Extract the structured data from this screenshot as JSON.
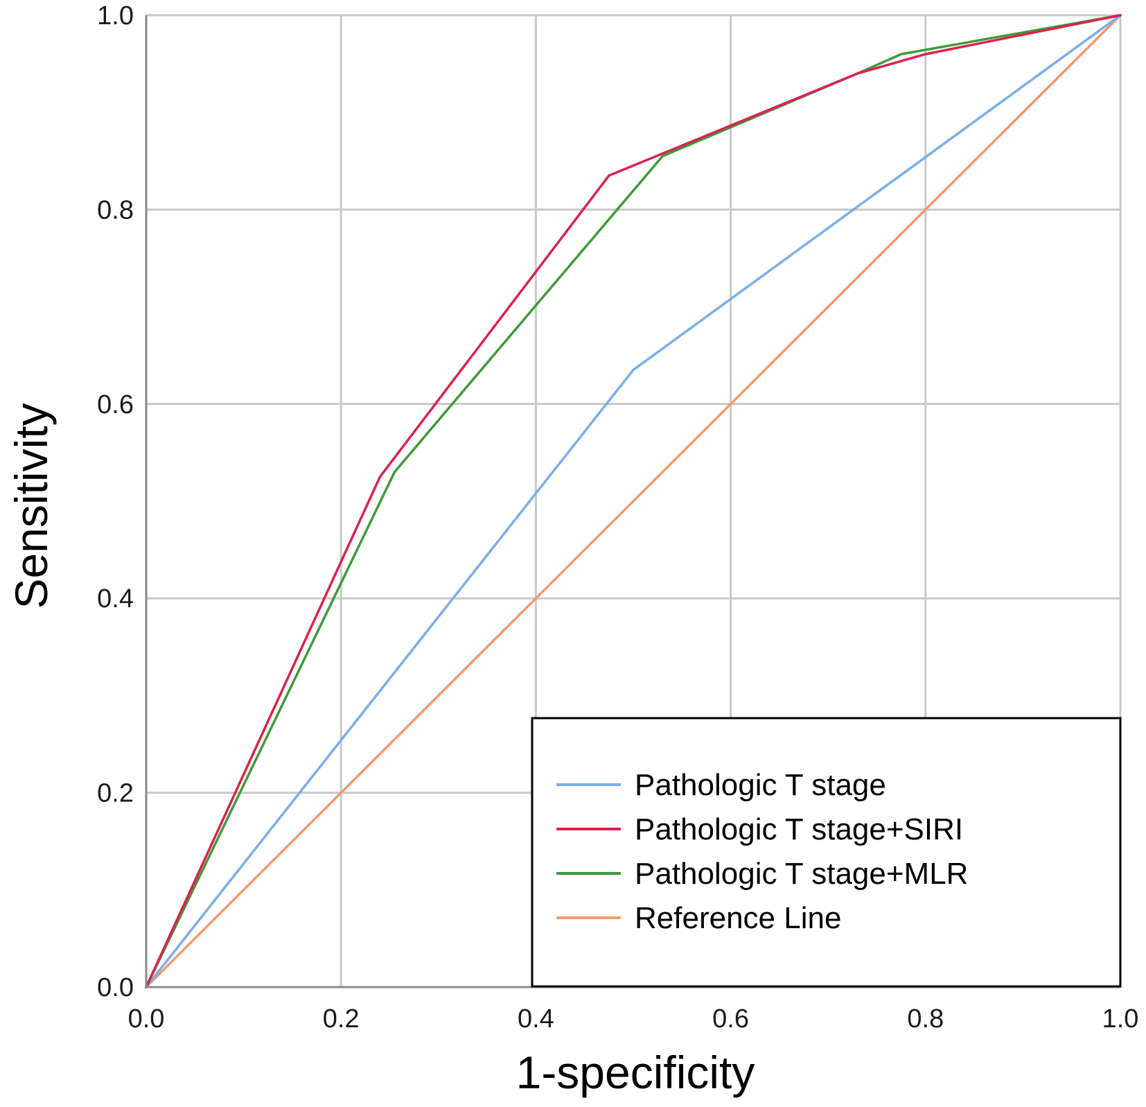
{
  "chart_data": {
    "type": "line",
    "xlabel": "1-specificity",
    "ylabel": "Sensitivity",
    "xlim": [
      0.0,
      1.0
    ],
    "ylim": [
      0.0,
      1.0
    ],
    "x_ticks": [
      "0.0",
      "0.2",
      "0.4",
      "0.6",
      "0.8",
      "1.0"
    ],
    "y_ticks": [
      "0.0",
      "0.2",
      "0.4",
      "0.6",
      "0.8",
      "1.0"
    ],
    "grid": true,
    "legend_position": "bottom-right",
    "series": [
      {
        "name": "Pathologic T stage",
        "color": "#7aaee8",
        "points": [
          [
            0.0,
            0.0
          ],
          [
            0.5,
            0.635
          ],
          [
            1.0,
            1.0
          ]
        ]
      },
      {
        "name": "Pathologic T stage+SIRI",
        "color": "#d8234f",
        "points": [
          [
            0.0,
            0.0
          ],
          [
            0.24,
            0.525
          ],
          [
            0.475,
            0.835
          ],
          [
            0.73,
            0.94
          ],
          [
            0.8,
            0.96
          ],
          [
            1.0,
            1.0
          ]
        ]
      },
      {
        "name": "Pathologic T stage+MLR",
        "color": "#3f9a3a",
        "points": [
          [
            0.0,
            0.0
          ],
          [
            0.255,
            0.53
          ],
          [
            0.53,
            0.855
          ],
          [
            0.73,
            0.94
          ],
          [
            0.775,
            0.96
          ],
          [
            1.0,
            1.0
          ]
        ]
      },
      {
        "name": "Reference Line",
        "color": "#f59a6a",
        "points": [
          [
            0.0,
            0.0
          ],
          [
            1.0,
            1.0
          ]
        ]
      }
    ]
  }
}
